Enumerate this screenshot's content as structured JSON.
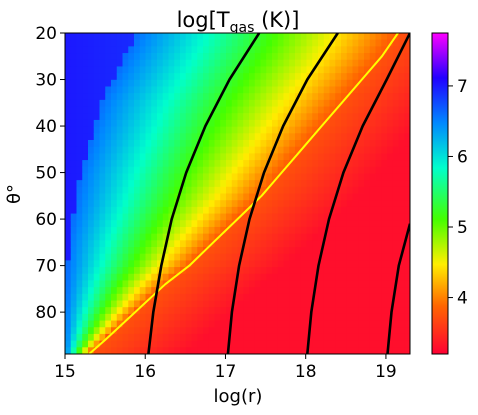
{
  "chart_data": {
    "type": "heatmap",
    "title_main": "log[T",
    "title_sub": "gas",
    "title_tail": " (K)]",
    "xlabel": "log(r)",
    "ylabel": "θ°",
    "xlim": [
      15,
      19.3
    ],
    "ylim": [
      89,
      20
    ],
    "xticks": [
      15,
      16,
      17,
      18,
      19
    ],
    "yticks": [
      20,
      30,
      40,
      50,
      60,
      70,
      80
    ],
    "colorbar": {
      "min": 3.2,
      "max": 7.75,
      "ticks": [
        4,
        5,
        6,
        7
      ],
      "colormap": "gist_rainbow_r"
    },
    "field_description": {
      "boundary_r_at_theta": {
        "theta": [
          20,
          35,
          50,
          65,
          80,
          89
        ],
        "r": [
          15.9,
          15.45,
          15.2,
          15.05,
          15.0,
          15.0
        ]
      },
      "hot_value": 7.0,
      "cold_value": 3.3
    },
    "series": [
      {
        "color": "#ffff00",
        "theta": [
          89,
          86,
          82,
          78,
          74,
          70,
          65,
          60,
          55,
          50,
          45,
          40,
          35,
          30,
          25,
          20
        ],
        "log_r": [
          15.3,
          15.5,
          15.75,
          16.0,
          16.25,
          16.55,
          16.85,
          17.15,
          17.45,
          17.7,
          17.95,
          18.2,
          18.45,
          18.7,
          18.95,
          19.15
        ]
      },
      {
        "color": "#000000",
        "theta": [
          89,
          80,
          70,
          60,
          50,
          40,
          30,
          20
        ],
        "log_r": [
          16.04,
          16.1,
          16.2,
          16.33,
          16.51,
          16.75,
          17.05,
          17.42
        ]
      },
      {
        "color": "#000000",
        "theta": [
          89,
          80,
          70,
          60,
          50,
          40,
          30,
          20
        ],
        "log_r": [
          17.03,
          17.08,
          17.17,
          17.3,
          17.48,
          17.72,
          18.02,
          18.4
        ]
      },
      {
        "color": "#000000",
        "theta": [
          89,
          80,
          70,
          60,
          50,
          40,
          30,
          20
        ],
        "log_r": [
          18.02,
          18.07,
          18.16,
          18.29,
          18.47,
          18.71,
          19.01,
          19.3
        ]
      },
      {
        "color": "#000000",
        "theta": [
          89,
          80,
          70,
          61
        ],
        "log_r": [
          19.02,
          19.07,
          19.16,
          19.3
        ]
      }
    ]
  }
}
